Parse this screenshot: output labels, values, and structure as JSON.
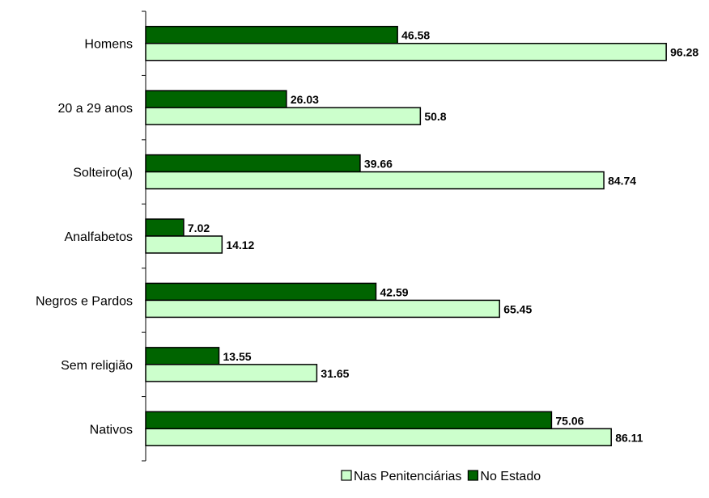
{
  "chart_data": {
    "type": "bar",
    "orientation": "horizontal",
    "categories": [
      "Homens",
      "20 a 29 anos",
      "Solteiro(a)",
      "Analfabetos",
      "Negros e Pardos",
      "Sem religião",
      "Nativos"
    ],
    "series": [
      {
        "name": "No Estado",
        "color": "#006400",
        "values": [
          46.58,
          26.03,
          39.66,
          7.02,
          42.59,
          13.55,
          75.06
        ],
        "labels": [
          "46.58",
          "26.03",
          "39.66",
          "7.02",
          "42.59",
          "13.55",
          "75.06"
        ]
      },
      {
        "name": "Nas Penitenciárias",
        "color": "#CCFFCC",
        "values": [
          96.28,
          50.8,
          84.74,
          14.12,
          65.45,
          31.65,
          86.11
        ],
        "labels": [
          "96.28",
          "50.8",
          "84.74",
          "14.12",
          "65.45",
          "31.65",
          "86.11"
        ]
      }
    ],
    "xlim": [
      0,
      100
    ],
    "grid": false,
    "legend": {
      "position": "bottom-right",
      "order": [
        "Nas Penitenciárias",
        "No Estado"
      ]
    }
  }
}
